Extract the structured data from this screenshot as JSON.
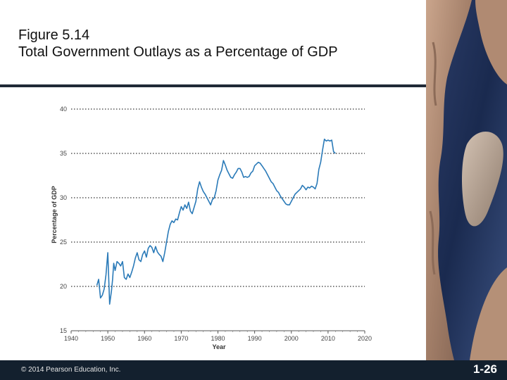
{
  "slide": {
    "title_line1": "Figure 5.14",
    "title_line2": "Total Government Outlays as a Percentage of GDP",
    "copyright": "© 2014 Pearson Education, Inc.",
    "slide_number": "1-26"
  },
  "colors": {
    "line": "#2a7ab8",
    "footer": "#13202e",
    "title_rule": "#1f2a36"
  },
  "chart_data": {
    "type": "line",
    "title": "",
    "xlabel": "Year",
    "ylabel": "Percentage of GDP",
    "xlim": [
      1940,
      2020
    ],
    "ylim": [
      15,
      40
    ],
    "x_ticks": [
      1940,
      1950,
      1960,
      1970,
      1980,
      1990,
      2000,
      2010,
      2020
    ],
    "y_ticks": [
      15,
      20,
      25,
      30,
      35,
      40
    ],
    "grid": "horizontal dotted",
    "series": [
      {
        "name": "",
        "x": [
          1947.0,
          1947.5,
          1948.0,
          1948.5,
          1949.0,
          1949.5,
          1950.0,
          1950.5,
          1951.0,
          1951.3,
          1951.6,
          1952.0,
          1952.5,
          1953.0,
          1953.5,
          1954.0,
          1954.5,
          1955.0,
          1955.5,
          1956.0,
          1956.5,
          1957.0,
          1957.5,
          1958.0,
          1958.5,
          1959.0,
          1959.5,
          1960.0,
          1960.5,
          1961.0,
          1961.5,
          1962.0,
          1962.5,
          1963.0,
          1963.5,
          1964.0,
          1964.5,
          1965.0,
          1965.5,
          1966.0,
          1966.5,
          1967.0,
          1967.5,
          1968.0,
          1968.5,
          1969.0,
          1969.5,
          1970.0,
          1970.5,
          1971.0,
          1971.5,
          1972.0,
          1972.5,
          1973.0,
          1973.5,
          1974.0,
          1974.5,
          1975.0,
          1975.5,
          1976.0,
          1976.5,
          1977.0,
          1977.5,
          1978.0,
          1978.5,
          1979.0,
          1979.5,
          1980.0,
          1980.5,
          1981.0,
          1981.5,
          1982.0,
          1982.5,
          1983.0,
          1983.5,
          1984.0,
          1984.5,
          1985.0,
          1985.5,
          1986.0,
          1986.5,
          1987.0,
          1987.5,
          1988.0,
          1988.5,
          1989.0,
          1989.5,
          1990.0,
          1990.5,
          1991.0,
          1991.5,
          1992.0,
          1992.5,
          1993.0,
          1993.5,
          1994.0,
          1994.5,
          1995.0,
          1995.5,
          1996.0,
          1996.5,
          1997.0,
          1997.5,
          1998.0,
          1998.5,
          1999.0,
          1999.5,
          2000.0,
          2000.5,
          2001.0,
          2001.5,
          2002.0,
          2002.5,
          2003.0,
          2003.5,
          2004.0,
          2004.5,
          2005.0,
          2005.5,
          2006.0,
          2006.5,
          2007.0,
          2007.5,
          2008.0,
          2008.5,
          2009.0,
          2009.5,
          2010.0,
          2010.5,
          2011.0,
          2011.5,
          2012.0
        ],
        "values": [
          20.1,
          20.8,
          18.7,
          19.0,
          19.7,
          21.3,
          23.8,
          18.0,
          19.5,
          20.8,
          22.6,
          21.8,
          22.8,
          22.6,
          22.3,
          22.8,
          21.0,
          20.8,
          21.4,
          21.0,
          21.6,
          22.3,
          23.2,
          23.8,
          23.0,
          22.8,
          23.6,
          24.0,
          23.3,
          24.3,
          24.6,
          24.4,
          23.8,
          24.5,
          23.9,
          23.6,
          23.4,
          22.8,
          23.8,
          25.0,
          26.2,
          27.0,
          27.4,
          27.2,
          27.6,
          27.5,
          28.3,
          29.0,
          28.6,
          29.2,
          28.8,
          29.5,
          28.5,
          28.2,
          28.9,
          29.6,
          31.0,
          31.8,
          31.2,
          30.7,
          30.4,
          30.0,
          29.6,
          29.2,
          29.8,
          30.0,
          30.8,
          32.0,
          32.6,
          33.1,
          34.2,
          33.7,
          33.1,
          32.7,
          32.3,
          32.2,
          32.6,
          32.9,
          33.3,
          33.3,
          32.9,
          32.3,
          32.4,
          32.3,
          32.4,
          32.8,
          33.0,
          33.6,
          33.8,
          34.0,
          33.9,
          33.6,
          33.3,
          33.0,
          32.6,
          32.2,
          31.8,
          31.6,
          31.2,
          30.8,
          30.6,
          30.2,
          29.9,
          29.6,
          29.3,
          29.2,
          29.2,
          29.6,
          30.0,
          30.4,
          30.6,
          30.8,
          31.0,
          31.4,
          31.2,
          30.9,
          31.2,
          31.1,
          31.3,
          31.2,
          31.0,
          31.6,
          33.2,
          34.0,
          35.4,
          36.6,
          36.4,
          36.5,
          36.4,
          36.5,
          35.2,
          35.0
        ]
      }
    ]
  }
}
